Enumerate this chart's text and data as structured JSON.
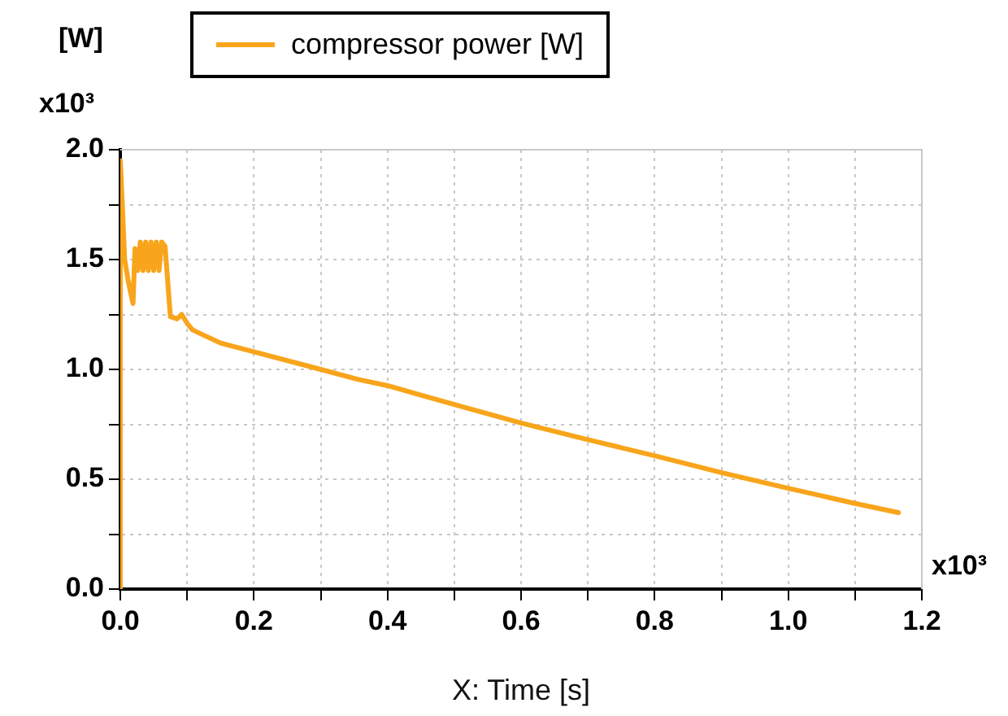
{
  "chart_data": {
    "type": "line",
    "xlabel": "X: Time [s]",
    "ylabel": "[W]",
    "annotations": [
      "x10³",
      "x10³"
    ],
    "legend": "top",
    "grid": true,
    "marker": "none",
    "line_style": "solid",
    "xlim": [
      0,
      1.2
    ],
    "ylim": [
      0,
      2.0
    ],
    "xticks": [
      {
        "value": 0,
        "label": "0.0"
      },
      {
        "value": 0.1,
        "label": null
      },
      {
        "value": 0.2,
        "label": "0.2"
      },
      {
        "value": 0.3,
        "label": null
      },
      {
        "value": 0.4,
        "label": "0.4"
      },
      {
        "value": 0.5,
        "label": null
      },
      {
        "value": 0.6,
        "label": "0.6"
      },
      {
        "value": 0.7,
        "label": null
      },
      {
        "value": 0.8,
        "label": "0.8"
      },
      {
        "value": 0.9,
        "label": null
      },
      {
        "value": 1.0,
        "label": "1.0"
      },
      {
        "value": 1.1,
        "label": null
      },
      {
        "value": 1.2,
        "label": "1.2"
      }
    ],
    "yticks": [
      {
        "value": 0,
        "label": "0.0"
      },
      {
        "value": 0.25,
        "label": null
      },
      {
        "value": 0.5,
        "label": "0.5"
      },
      {
        "value": 0.75,
        "label": null
      },
      {
        "value": 1.0,
        "label": "1.0"
      },
      {
        "value": 1.25,
        "label": null
      },
      {
        "value": 1.5,
        "label": "1.5"
      },
      {
        "value": 1.75,
        "label": null
      },
      {
        "value": 2.0,
        "label": "2.0"
      }
    ],
    "series": [
      {
        "name": "compressor power [W]",
        "color": "#f8a51c",
        "x": [
          0,
          0,
          0.003,
          0.0065,
          0.012,
          0.019,
          0.022,
          0.026,
          0.03,
          0.034,
          0.038,
          0.042,
          0.046,
          0.05,
          0.054,
          0.058,
          0.062,
          0.067,
          0.075,
          0.085,
          0.092,
          0.1,
          0.108,
          0.15,
          0.2,
          0.3,
          0.355,
          0.4,
          0.5,
          0.6,
          0.7,
          0.8,
          0.9,
          1.0,
          1.1,
          1.165
        ],
        "values": [
          0,
          1.95,
          1.75,
          1.5,
          1.4,
          1.3,
          1.55,
          1.45,
          1.58,
          1.45,
          1.58,
          1.45,
          1.58,
          1.45,
          1.58,
          1.45,
          1.58,
          1.56,
          1.24,
          1.23,
          1.25,
          1.21,
          1.18,
          1.12,
          1.08,
          1.0,
          0.955,
          0.926,
          0.84,
          0.756,
          0.68,
          0.607,
          0.53,
          0.459,
          0.39,
          0.348
        ]
      }
    ]
  }
}
